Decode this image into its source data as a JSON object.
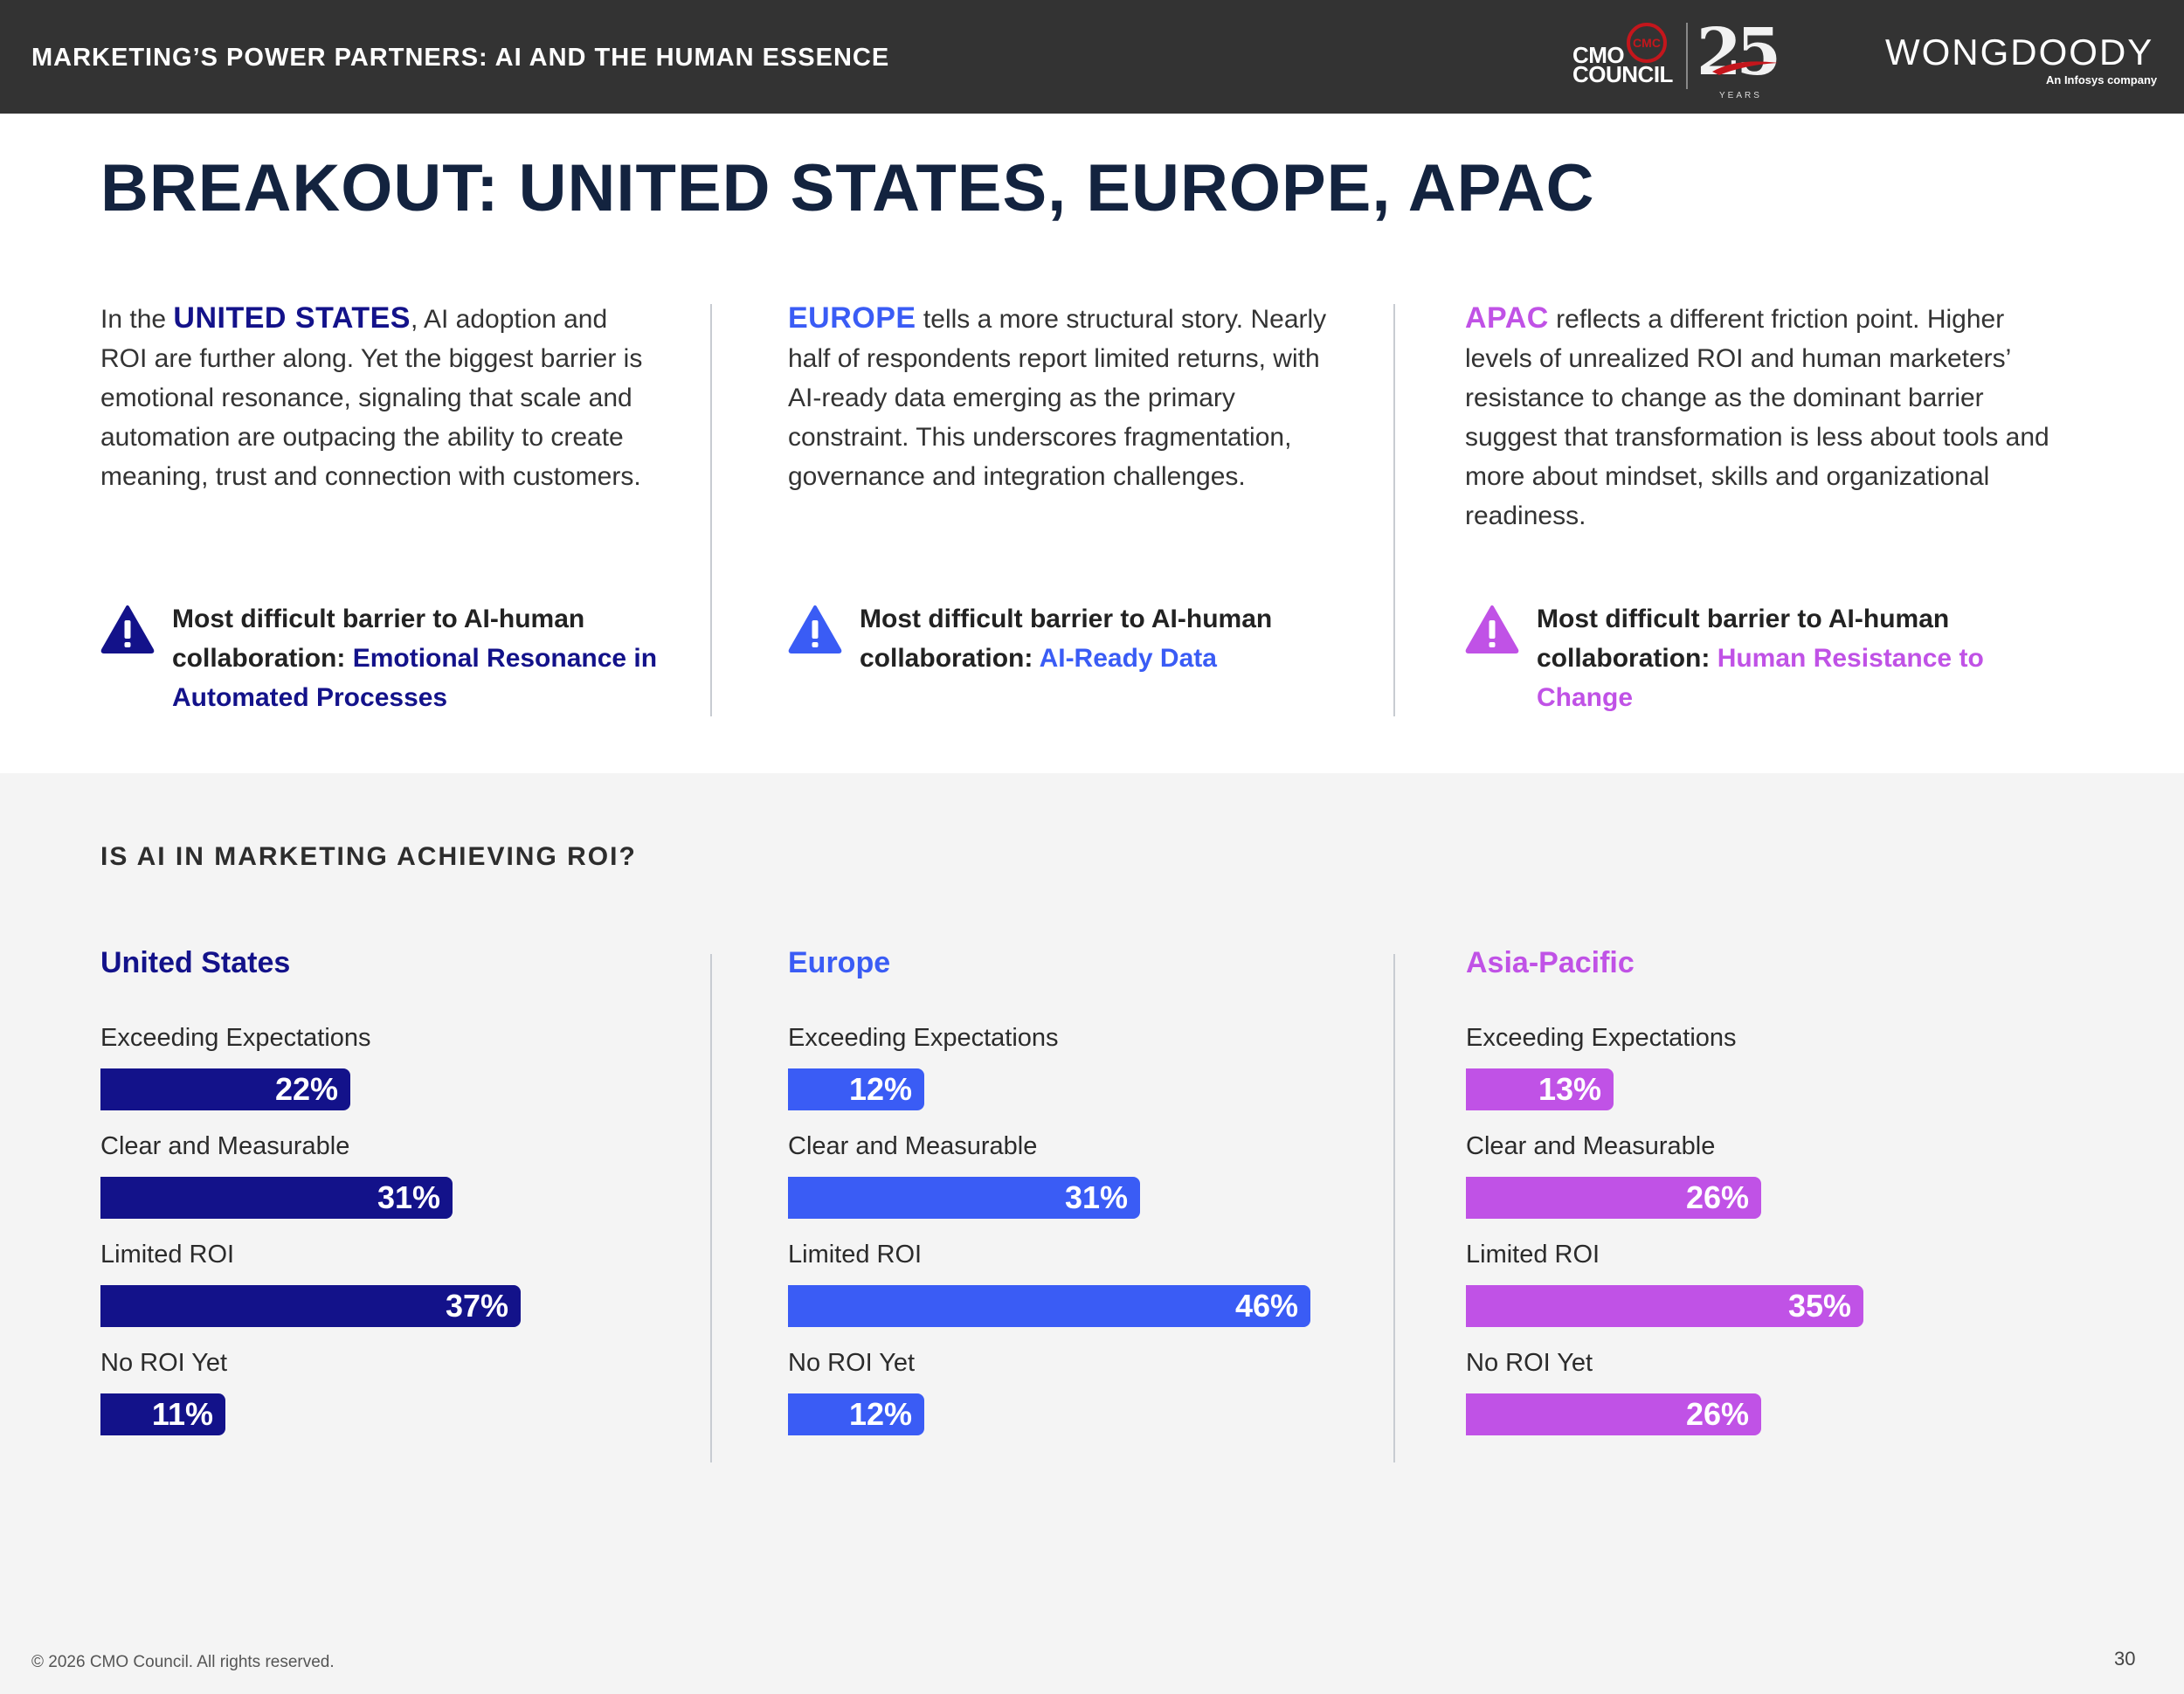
{
  "header": {
    "title": "MARKETING’S POWER PARTNERS: AI AND THE HUMAN ESSENCE",
    "cmo_logo": {
      "line1": "CMO",
      "line2": "COUNCIL",
      "badge": "CMC",
      "anniversary": "25",
      "years": "YEARS"
    },
    "partner_logo": {
      "name": "WONGDOODY",
      "sub": "An Infosys company"
    }
  },
  "page_title": "BREAKOUT: UNITED STATES, EUROPE, APAC",
  "colors": {
    "us": "#13128a",
    "europe": "#3a5cf5",
    "apac": "#c052e6",
    "title": "#13233f"
  },
  "columns": [
    {
      "lead": "In the ",
      "highlight": "UNITED STATES",
      "body": ", AI adoption and ROI are further along. Yet the biggest barrier is emotional resonance, signaling that scale and automation are outpacing the ability to create meaning, trust and connection with customers.",
      "barrier_prefix": "Most difficult barrier to AI-human collaboration: ",
      "barrier_value": "Emotional Resonance in Automated Processes"
    },
    {
      "lead": "",
      "highlight": "EUROPE",
      "body": " tells a more structural story. Nearly half of respondents report limited returns, with AI-ready data emerging as the primary constraint. This underscores fragmentation, governance and integration challenges.",
      "barrier_prefix": "Most difficult barrier to AI-human collaboration: ",
      "barrier_value": "AI-Ready Data"
    },
    {
      "lead": "",
      "highlight": "APAC",
      "body": " reflects a different friction point. Higher levels of unrealized ROI and human marketers’ resistance to change as the dominant barrier suggest that transformation is less about tools and more about mindset, skills and organizational readiness.",
      "barrier_prefix": "Most difficult barrier to AI-human collaboration: ",
      "barrier_value": "Human Resistance to Change"
    }
  ],
  "chart_title": "IS AI IN MARKETING ACHIEVING ROI?",
  "chart_data": [
    {
      "type": "bar",
      "title": "United States",
      "categories": [
        "Exceeding Expectations",
        "Clear and Measurable",
        "Limited ROI",
        "No ROI Yet"
      ],
      "values": [
        22,
        31,
        37,
        11
      ],
      "value_labels": [
        "22%",
        "31%",
        "37%",
        "11%"
      ],
      "color": "#13128a"
    },
    {
      "type": "bar",
      "title": "Europe",
      "categories": [
        "Exceeding Expectations",
        "Clear and Measurable",
        "Limited ROI",
        "No ROI Yet"
      ],
      "values": [
        12,
        31,
        46,
        12
      ],
      "value_labels": [
        "12%",
        "31%",
        "46%",
        "12%"
      ],
      "color": "#3a5cf5"
    },
    {
      "type": "bar",
      "title": "Asia-Pacific",
      "categories": [
        "Exceeding Expectations",
        "Clear and Measurable",
        "Limited ROI",
        "No ROI Yet"
      ],
      "values": [
        13,
        26,
        35,
        26
      ],
      "value_labels": [
        "13%",
        "26%",
        "35%",
        "26%"
      ],
      "color": "#c052e6"
    }
  ],
  "footer": {
    "copyright": "© 2026 CMO Council. All rights reserved.",
    "page_number": "30"
  }
}
